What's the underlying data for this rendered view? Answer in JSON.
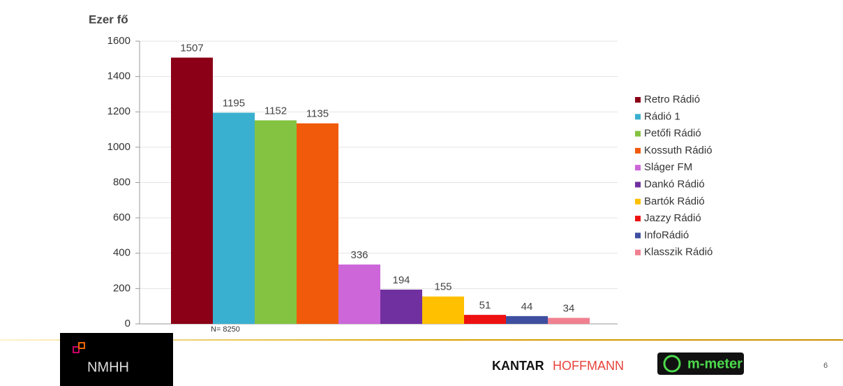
{
  "chart_data": {
    "type": "bar",
    "ylabel": "Ezer fő",
    "categories": [
      "Retro Rádió",
      "Rádió 1",
      "Petőfi Rádió",
      "Kossuth Rádió",
      "Sláger FM",
      "Dankó Rádió",
      "Bartók Rádió",
      "Jazzy Rádió",
      "InfoRádió",
      "Klasszik Rádió"
    ],
    "values": [
      1507,
      1195,
      1152,
      1135,
      336,
      194,
      155,
      51,
      44,
      34
    ],
    "colors": [
      "#8b0016",
      "#3ab0d0",
      "#84c341",
      "#f05a0a",
      "#cc66d9",
      "#7030a0",
      "#ffc000",
      "#ee1111",
      "#3f4fa0",
      "#f08090"
    ],
    "ylim": [
      0,
      1600
    ],
    "yticks": [
      0,
      200,
      400,
      600,
      800,
      1000,
      1200,
      1400,
      1600
    ],
    "grid": true,
    "legend": "right",
    "note": "N= 8250",
    "footer": {
      "nmhh": "NMHH",
      "kantar": "KANTAR",
      "hoffmann": "HOFFMANN",
      "mmeter": "m-meter",
      "page": "6"
    }
  }
}
